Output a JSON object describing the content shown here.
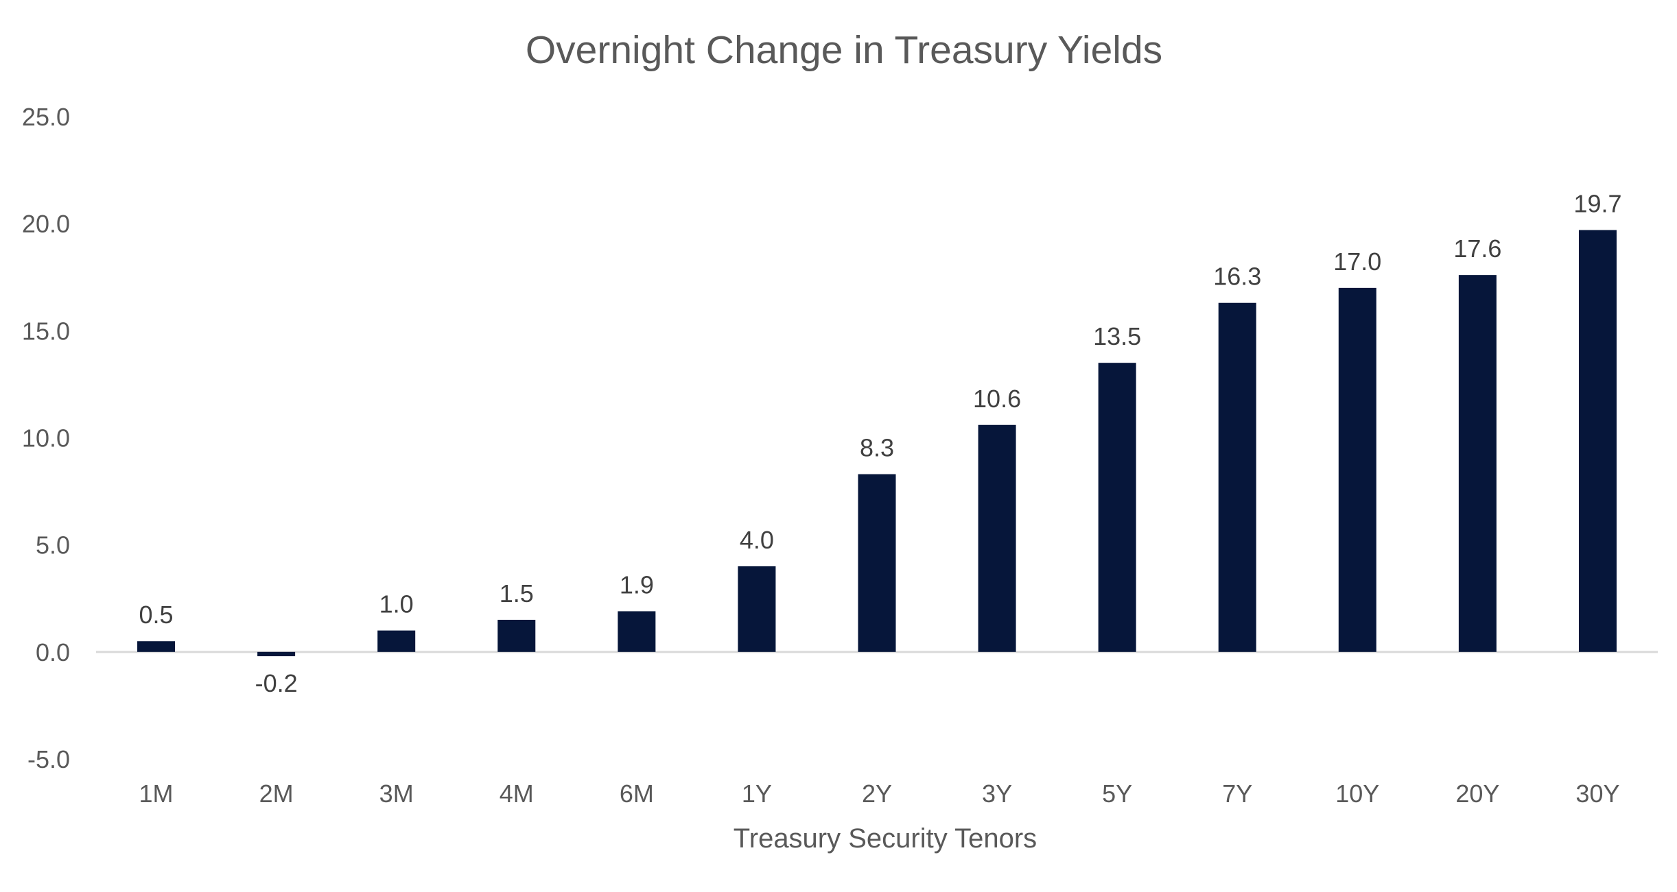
{
  "chart_data": {
    "type": "bar",
    "title": "Overnight Change in Treasury Yields",
    "xlabel": "Treasury Security Tenors",
    "ylabel": "",
    "categories": [
      "1M",
      "2M",
      "3M",
      "4M",
      "6M",
      "1Y",
      "2Y",
      "3Y",
      "5Y",
      "7Y",
      "10Y",
      "20Y",
      "30Y"
    ],
    "values": [
      0.5,
      -0.2,
      1.0,
      1.5,
      1.9,
      4.0,
      8.3,
      10.6,
      13.5,
      16.3,
      17.0,
      17.6,
      19.7
    ],
    "value_labels": [
      "0.5",
      "-0.2",
      "1.0",
      "1.5",
      "1.9",
      "4.0",
      "8.3",
      "10.6",
      "13.5",
      "16.3",
      "17.0",
      "17.6",
      "19.7"
    ],
    "ylim": [
      -5.0,
      25.0
    ],
    "yticks": [
      -5.0,
      0.0,
      5.0,
      10.0,
      15.0,
      20.0,
      25.0
    ],
    "ytick_labels": [
      "-5.0",
      "0.0",
      "5.0",
      "10.0",
      "15.0",
      "20.0",
      "25.0"
    ],
    "grid": false,
    "legend": "none",
    "colors": {
      "bar": "#06163a",
      "zero_line": "#d9d9d9",
      "text": "#595959",
      "data_label": "#404040"
    }
  }
}
